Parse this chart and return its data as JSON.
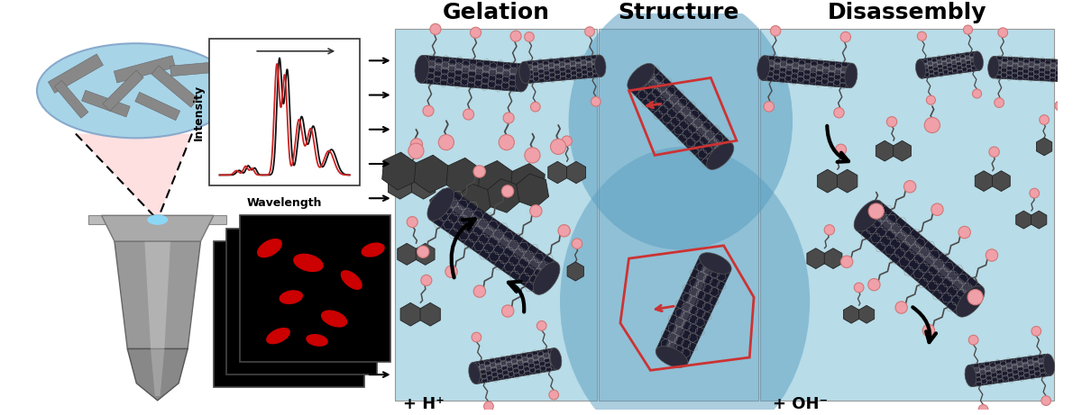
{
  "title_gelation": "Gelation",
  "title_structure": "Structure",
  "title_disassembly": "Disassembly",
  "label_hplus": "+ H⁺",
  "label_ohminus": "+ OH⁻",
  "panel_bg": "#b8dce8",
  "struct_blob_color": "#6aaec8",
  "white": "#ffffff",
  "black": "#111111",
  "red_line": "#cc3333",
  "dark_hexagon": "#4a4a4a",
  "nanotube_dark": "#2d2d2d",
  "nanotube_light": "#aaaaaa",
  "pink_ball": "#f0a0a8",
  "pink_edge": "#d07878",
  "gray_nt_cloud": "#888888",
  "cloud_bg": "#a8d4e8",
  "beam_pink": "#ffcccc",
  "spectrum_black": "#111111",
  "spectrum_red": "#cc2222",
  "frame_bg": "#000000",
  "red_spot": "#cc0000"
}
